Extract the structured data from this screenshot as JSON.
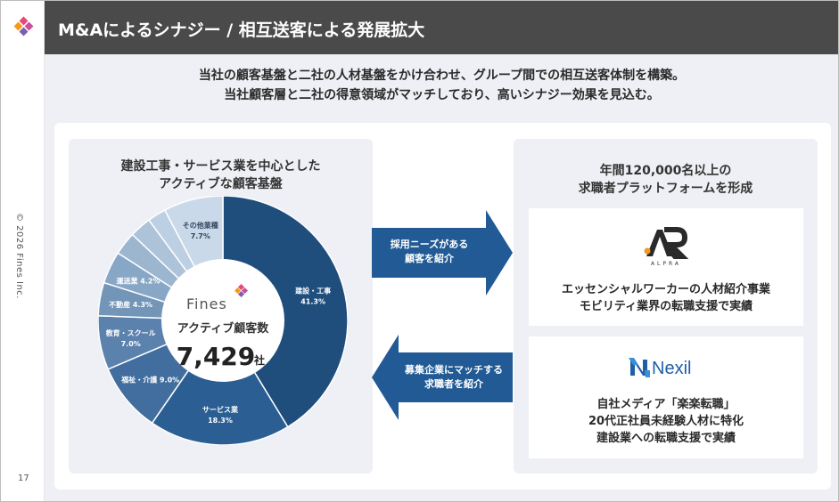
{
  "header": {
    "title": "M&Aによるシナジー / 相互送客による発展拡大"
  },
  "sidebar": {
    "copyright": "© 2026 Fines Inc.",
    "page_number": "17"
  },
  "intro": {
    "line1": "当社の顧客基盤と二社の人材基盤をかけ合わせ、グループ間での相互送客体制を構築。",
    "line2": "当社顧客層と二社の得意領域がマッチしており、高いシナジー効果を見込む。"
  },
  "left_panel": {
    "heading_line1": "建設工事・サービス業を中心とした",
    "heading_line2": "アクティブな顧客基盤",
    "logo_text": "Fines",
    "center_label": "アクティブ顧客数",
    "center_value": "7,429",
    "center_unit": "社"
  },
  "chart_data": {
    "type": "pie",
    "unit": "%",
    "slices": [
      {
        "name": "建設・工事",
        "value": 41.3,
        "value_label": "41.3%",
        "color": "#1f4e7d"
      },
      {
        "name": "サービス業",
        "value": 18.3,
        "value_label": "18.3%",
        "color": "#2b5f93"
      },
      {
        "name": "福祉・介護",
        "value": 9.0,
        "value_label": "9.0%",
        "color": "#416e9e"
      },
      {
        "name": "教育・スクール",
        "value": 7.0,
        "value_label": "7.0%",
        "color": "#5b82ad"
      },
      {
        "name": "不動産",
        "value": 4.3,
        "value_label": "4.3%",
        "color": "#7295b8"
      },
      {
        "name": "運送業",
        "value": 4.2,
        "value_label": "4.2%",
        "color": "#88a7c6"
      },
      {
        "name": "",
        "value": 3.0,
        "value_label": "",
        "color": "#9db6d0"
      },
      {
        "name": "",
        "value": 2.8,
        "value_label": "",
        "color": "#adc3da"
      },
      {
        "name": "",
        "value": 2.4,
        "value_label": "",
        "color": "#bdcfe2"
      },
      {
        "name": "その他業種",
        "value": 7.7,
        "value_label": "7.7%",
        "color": "#c9d9ea"
      }
    ]
  },
  "arrows": {
    "right_line1": "採用ニーズがある",
    "right_line2": "顧客を紹介",
    "left_line1": "募集企業にマッチする",
    "left_line2": "求職者を紹介",
    "color": "#215a95"
  },
  "right_panel": {
    "heading_line1": "年間120,000名以上の",
    "heading_line2": "求職者プラットフォームを形成",
    "company1": {
      "logo_letters": "ALPRA",
      "desc_line1": "エッセンシャルワーカーの人材紹介事業",
      "desc_line2": "モビリティ業界の転職支援で実績"
    },
    "company2": {
      "logo_text": "Nexil",
      "desc_line1": "自社メディア「楽楽転職」",
      "desc_line2": "20代正社員未経験人材に特化",
      "desc_line3": "建設業への転職支援で実績"
    }
  },
  "colors": {
    "title_bar": "#4a4a4a",
    "background": "#eef0f5",
    "accent_pink": "#e8467c",
    "accent_orange": "#f39a1e"
  }
}
